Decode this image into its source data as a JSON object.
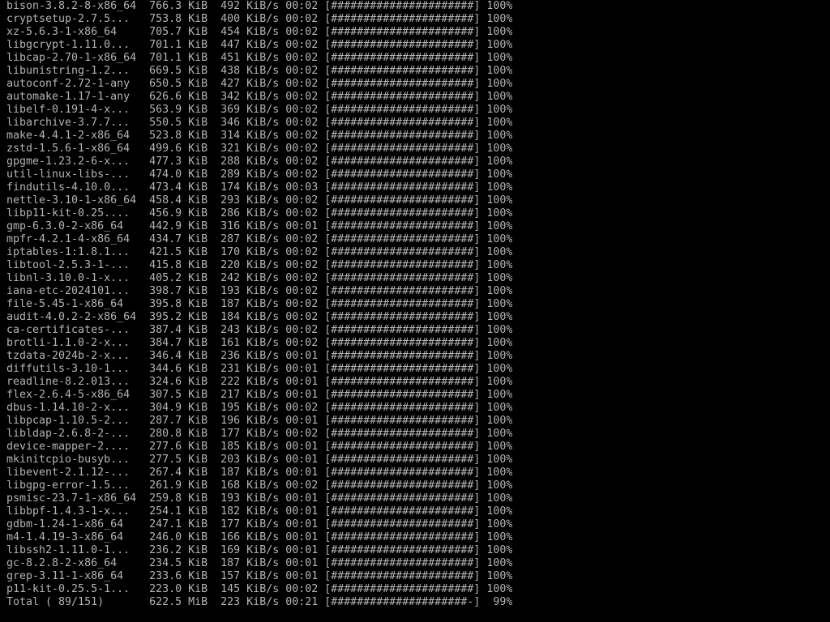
{
  "colors": {
    "background": "#000000",
    "text": "#b4b4b4"
  },
  "rows": [
    {
      "name": "bison-3.8.2-8-x86_64",
      "size": "766.3 KiB",
      "rate": "492 KiB/s",
      "time": "00:02",
      "bar": "[######################]",
      "percent": "100%"
    },
    {
      "name": "cryptsetup-2.7.5...",
      "size": "753.8 KiB",
      "rate": "400 KiB/s",
      "time": "00:02",
      "bar": "[######################]",
      "percent": "100%"
    },
    {
      "name": "xz-5.6.3-1-x86_64",
      "size": "705.7 KiB",
      "rate": "454 KiB/s",
      "time": "00:02",
      "bar": "[######################]",
      "percent": "100%"
    },
    {
      "name": "libgcrypt-1.11.0...",
      "size": "701.1 KiB",
      "rate": "447 KiB/s",
      "time": "00:02",
      "bar": "[######################]",
      "percent": "100%"
    },
    {
      "name": "libcap-2.70-1-x86_64",
      "size": "701.1 KiB",
      "rate": "451 KiB/s",
      "time": "00:02",
      "bar": "[######################]",
      "percent": "100%"
    },
    {
      "name": "libunistring-1.2...",
      "size": "669.5 KiB",
      "rate": "438 KiB/s",
      "time": "00:02",
      "bar": "[######################]",
      "percent": "100%"
    },
    {
      "name": "autoconf-2.72-1-any",
      "size": "650.5 KiB",
      "rate": "427 KiB/s",
      "time": "00:02",
      "bar": "[######################]",
      "percent": "100%"
    },
    {
      "name": "automake-1.17-1-any",
      "size": "626.6 KiB",
      "rate": "342 KiB/s",
      "time": "00:02",
      "bar": "[######################]",
      "percent": "100%"
    },
    {
      "name": "libelf-0.191-4-x...",
      "size": "563.9 KiB",
      "rate": "369 KiB/s",
      "time": "00:02",
      "bar": "[######################]",
      "percent": "100%"
    },
    {
      "name": "libarchive-3.7.7...",
      "size": "550.5 KiB",
      "rate": "346 KiB/s",
      "time": "00:02",
      "bar": "[######################]",
      "percent": "100%"
    },
    {
      "name": "make-4.4.1-2-x86_64",
      "size": "523.8 KiB",
      "rate": "314 KiB/s",
      "time": "00:02",
      "bar": "[######################]",
      "percent": "100%"
    },
    {
      "name": "zstd-1.5.6-1-x86_64",
      "size": "499.6 KiB",
      "rate": "321 KiB/s",
      "time": "00:02",
      "bar": "[######################]",
      "percent": "100%"
    },
    {
      "name": "gpgme-1.23.2-6-x...",
      "size": "477.3 KiB",
      "rate": "288 KiB/s",
      "time": "00:02",
      "bar": "[######################]",
      "percent": "100%"
    },
    {
      "name": "util-linux-libs-...",
      "size": "474.0 KiB",
      "rate": "289 KiB/s",
      "time": "00:02",
      "bar": "[######################]",
      "percent": "100%"
    },
    {
      "name": "findutils-4.10.0...",
      "size": "473.4 KiB",
      "rate": "174 KiB/s",
      "time": "00:03",
      "bar": "[######################]",
      "percent": "100%"
    },
    {
      "name": "nettle-3.10-1-x86_64",
      "size": "458.4 KiB",
      "rate": "293 KiB/s",
      "time": "00:02",
      "bar": "[######################]",
      "percent": "100%"
    },
    {
      "name": "libp11-kit-0.25....",
      "size": "456.9 KiB",
      "rate": "286 KiB/s",
      "time": "00:02",
      "bar": "[######################]",
      "percent": "100%"
    },
    {
      "name": "gmp-6.3.0-2-x86_64",
      "size": "442.9 KiB",
      "rate": "316 KiB/s",
      "time": "00:01",
      "bar": "[######################]",
      "percent": "100%"
    },
    {
      "name": "mpfr-4.2.1-4-x86_64",
      "size": "434.7 KiB",
      "rate": "287 KiB/s",
      "time": "00:02",
      "bar": "[######################]",
      "percent": "100%"
    },
    {
      "name": "iptables-1:1.8.1...",
      "size": "421.5 KiB",
      "rate": "170 KiB/s",
      "time": "00:02",
      "bar": "[######################]",
      "percent": "100%"
    },
    {
      "name": "libtool-2.5.3-1-...",
      "size": "415.8 KiB",
      "rate": "220 KiB/s",
      "time": "00:02",
      "bar": "[######################]",
      "percent": "100%"
    },
    {
      "name": "libnl-3.10.0-1-x...",
      "size": "405.2 KiB",
      "rate": "242 KiB/s",
      "time": "00:02",
      "bar": "[######################]",
      "percent": "100%"
    },
    {
      "name": "iana-etc-2024101...",
      "size": "398.7 KiB",
      "rate": "193 KiB/s",
      "time": "00:02",
      "bar": "[######################]",
      "percent": "100%"
    },
    {
      "name": "file-5.45-1-x86_64",
      "size": "395.8 KiB",
      "rate": "187 KiB/s",
      "time": "00:02",
      "bar": "[######################]",
      "percent": "100%"
    },
    {
      "name": "audit-4.0.2-2-x86_64",
      "size": "395.2 KiB",
      "rate": "184 KiB/s",
      "time": "00:02",
      "bar": "[######################]",
      "percent": "100%"
    },
    {
      "name": "ca-certificates-...",
      "size": "387.4 KiB",
      "rate": "243 KiB/s",
      "time": "00:02",
      "bar": "[######################]",
      "percent": "100%"
    },
    {
      "name": "brotli-1.1.0-2-x...",
      "size": "384.7 KiB",
      "rate": "161 KiB/s",
      "time": "00:02",
      "bar": "[######################]",
      "percent": "100%"
    },
    {
      "name": "tzdata-2024b-2-x...",
      "size": "346.4 KiB",
      "rate": "236 KiB/s",
      "time": "00:01",
      "bar": "[######################]",
      "percent": "100%"
    },
    {
      "name": "diffutils-3.10-1...",
      "size": "344.6 KiB",
      "rate": "231 KiB/s",
      "time": "00:01",
      "bar": "[######################]",
      "percent": "100%"
    },
    {
      "name": "readline-8.2.013...",
      "size": "324.6 KiB",
      "rate": "222 KiB/s",
      "time": "00:01",
      "bar": "[######################]",
      "percent": "100%"
    },
    {
      "name": "flex-2.6.4-5-x86_64",
      "size": "307.5 KiB",
      "rate": "217 KiB/s",
      "time": "00:01",
      "bar": "[######################]",
      "percent": "100%"
    },
    {
      "name": "dbus-1.14.10-2-x...",
      "size": "304.9 KiB",
      "rate": "195 KiB/s",
      "time": "00:02",
      "bar": "[######################]",
      "percent": "100%"
    },
    {
      "name": "libpcap-1.10.5-2...",
      "size": "287.7 KiB",
      "rate": "196 KiB/s",
      "time": "00:01",
      "bar": "[######################]",
      "percent": "100%"
    },
    {
      "name": "libldap-2.6.8-2-...",
      "size": "280.8 KiB",
      "rate": "177 KiB/s",
      "time": "00:02",
      "bar": "[######################]",
      "percent": "100%"
    },
    {
      "name": "device-mapper-2....",
      "size": "277.6 KiB",
      "rate": "185 KiB/s",
      "time": "00:01",
      "bar": "[######################]",
      "percent": "100%"
    },
    {
      "name": "mkinitcpio-busyb...",
      "size": "277.5 KiB",
      "rate": "203 KiB/s",
      "time": "00:01",
      "bar": "[######################]",
      "percent": "100%"
    },
    {
      "name": "libevent-2.1.12-...",
      "size": "267.4 KiB",
      "rate": "187 KiB/s",
      "time": "00:01",
      "bar": "[######################]",
      "percent": "100%"
    },
    {
      "name": "libgpg-error-1.5...",
      "size": "261.9 KiB",
      "rate": "168 KiB/s",
      "time": "00:02",
      "bar": "[######################]",
      "percent": "100%"
    },
    {
      "name": "psmisc-23.7-1-x86_64",
      "size": "259.8 KiB",
      "rate": "193 KiB/s",
      "time": "00:01",
      "bar": "[######################]",
      "percent": "100%"
    },
    {
      "name": "libbpf-1.4.3-1-x...",
      "size": "254.1 KiB",
      "rate": "182 KiB/s",
      "time": "00:01",
      "bar": "[######################]",
      "percent": "100%"
    },
    {
      "name": "gdbm-1.24-1-x86_64",
      "size": "247.1 KiB",
      "rate": "177 KiB/s",
      "time": "00:01",
      "bar": "[######################]",
      "percent": "100%"
    },
    {
      "name": "m4-1.4.19-3-x86_64",
      "size": "246.0 KiB",
      "rate": "166 KiB/s",
      "time": "00:01",
      "bar": "[######################]",
      "percent": "100%"
    },
    {
      "name": "libssh2-1.11.0-1...",
      "size": "236.2 KiB",
      "rate": "169 KiB/s",
      "time": "00:01",
      "bar": "[######################]",
      "percent": "100%"
    },
    {
      "name": "gc-8.2.8-2-x86_64",
      "size": "234.5 KiB",
      "rate": "187 KiB/s",
      "time": "00:01",
      "bar": "[######################]",
      "percent": "100%"
    },
    {
      "name": "grep-3.11-1-x86_64",
      "size": "233.6 KiB",
      "rate": "157 KiB/s",
      "time": "00:01",
      "bar": "[######################]",
      "percent": "100%"
    },
    {
      "name": "p11-kit-0.25.5-1...",
      "size": "223.0 KiB",
      "rate": "145 KiB/s",
      "time": "00:02",
      "bar": "[######################]",
      "percent": "100%"
    }
  ],
  "total": {
    "name": "Total ( 89/151)",
    "size": "622.5 MiB",
    "rate": "223 KiB/s",
    "time": "00:21",
    "bar": "[#####################-]",
    "percent": "99%",
    "progress_percent": 99
  }
}
